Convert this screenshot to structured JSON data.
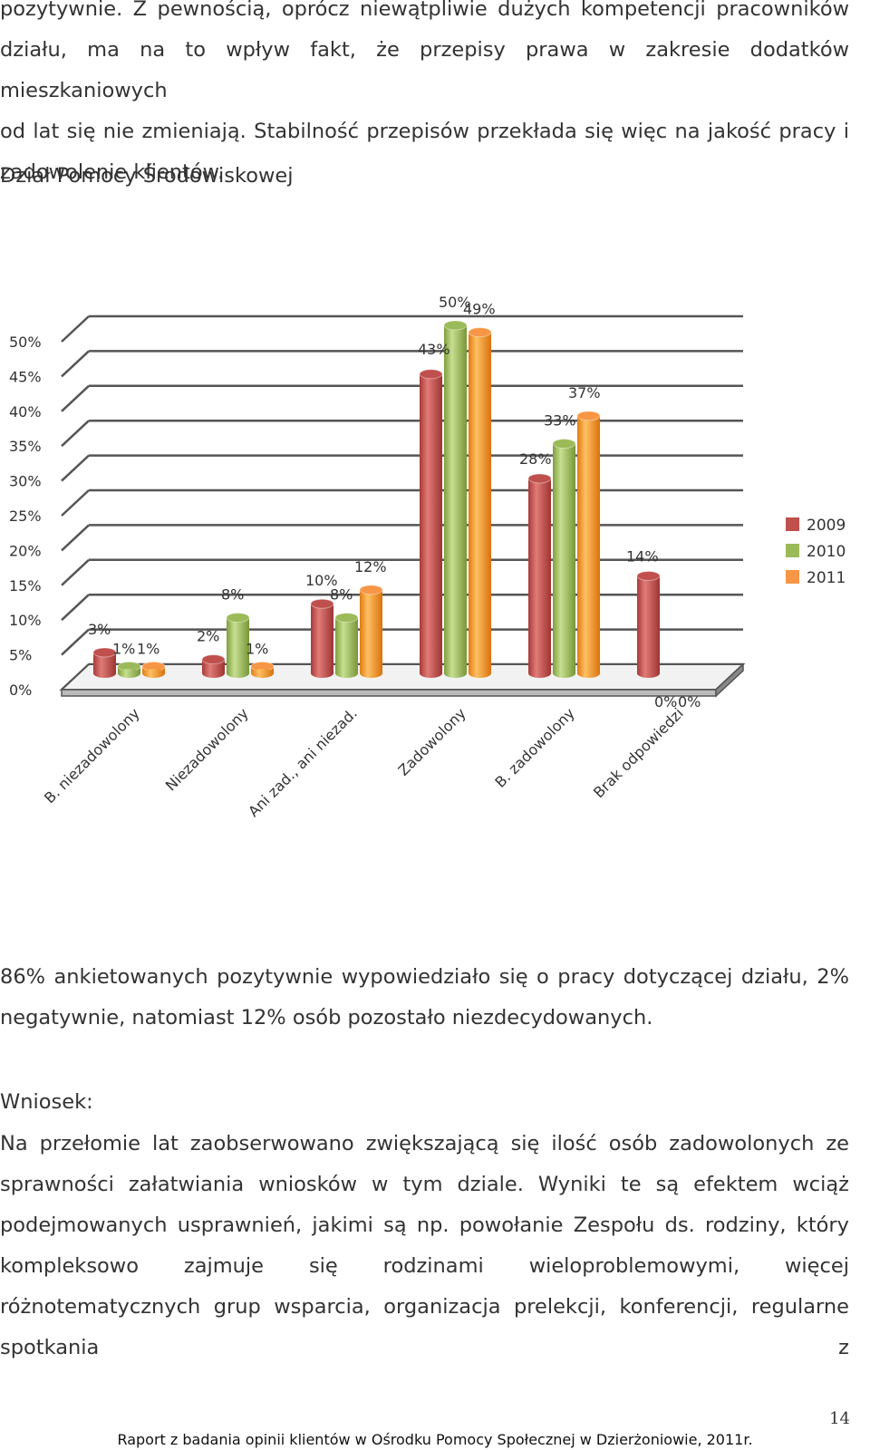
{
  "text_top": {
    "lines": [
      "pozytywnie. Z pewnością, oprócz niewątpliwie dużych kompetencji pracowników",
      "działu, ma na to wpływ fakt, że przepisy prawa w zakresie dodatków mieszkaniowych",
      "od lat się nie zmieniają. Stabilność przepisów przekłada się więc na jakość pracy i",
      "zadowolenie klientów."
    ]
  },
  "section_title": "Dział Pomocy Środowiskowej",
  "chart_data": {
    "type": "bar",
    "categories": [
      "B. niezadowolony",
      "Niezadowolony",
      "Ani zad., ani niezad.",
      "Zadowolony",
      "B. zadowolony",
      "Brak odpowiedzi"
    ],
    "series": [
      {
        "name": "2009",
        "values": [
          3,
          2,
          10,
          43,
          28,
          14
        ],
        "labels": [
          "3%",
          "2%",
          "10%",
          "43%",
          "28%",
          "14%"
        ],
        "color": "#c0504d"
      },
      {
        "name": "2010",
        "values": [
          1,
          8,
          8,
          50,
          33,
          0
        ],
        "labels": [
          "1%",
          "8%",
          "8%",
          "50%",
          "33%",
          "0%"
        ],
        "color": "#9bbb59"
      },
      {
        "name": "2011",
        "values": [
          1,
          1,
          12,
          49,
          37,
          0
        ],
        "labels": [
          "1%",
          "1%",
          "12%",
          "49%",
          "37%",
          "0%"
        ],
        "color": "#f79646"
      }
    ],
    "yticks": [
      "0%",
      "5%",
      "10%",
      "15%",
      "20%",
      "25%",
      "30%",
      "35%",
      "40%",
      "45%",
      "50%"
    ],
    "ylim": [
      0,
      50
    ],
    "grid": true,
    "legend_position": "right",
    "style": "3d-cylinder"
  },
  "summary": "86% ankietowanych pozytywnie wypowiedziało się o pracy dotyczącej działu, 2% negatywnie, natomiast 12% osób pozostało niezdecydowanych.",
  "conclusion_label": "Wniosek:",
  "conclusion": "Na przełomie lat zaobserwowano zwiększającą się ilość osób zadowolonych ze sprawności załatwiania wniosków w tym dziale. Wyniki te są efektem wciąż podejmowanych usprawnień, jakimi są np. powołanie Zespołu ds. rodziny, który kompleksowo zajmuje się rodzinami wieloproblemowymi, więcej różnotematycznych grup wsparcia, organizacja prelekcji, konferencji, regularne spotkania z",
  "page_number": "14",
  "footer": "Raport z badania opinii klientów w Ośrodku Pomocy Społecznej w Dzierżoniowie, 2011r."
}
